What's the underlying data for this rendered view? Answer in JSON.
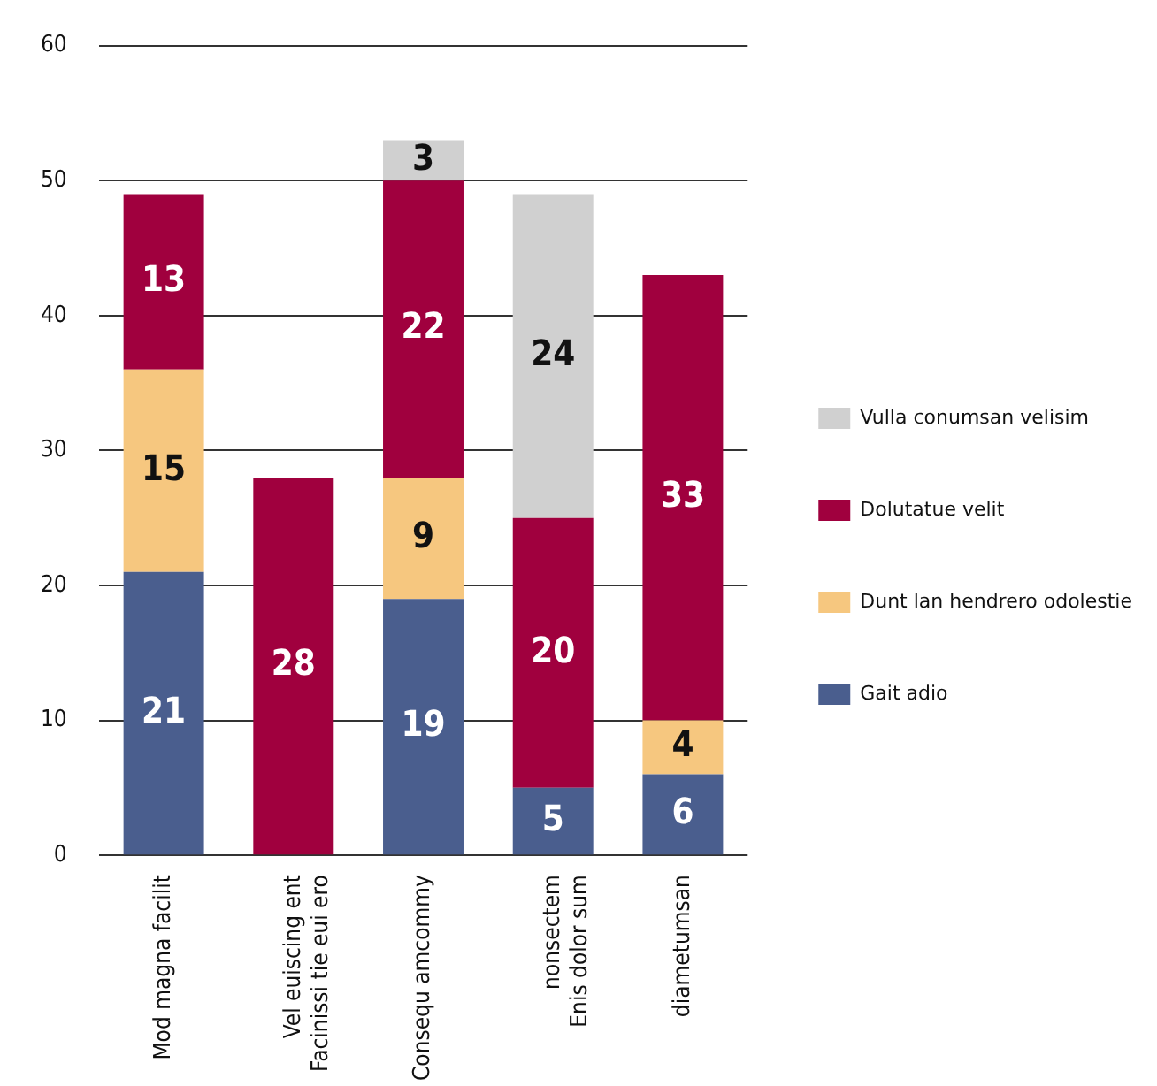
{
  "chart_data": {
    "type": "bar",
    "stacked": true,
    "categories": [
      "Mod magna facilit",
      "Vel euiscing ent\nFacinissi tie eui ero",
      "Consequ amcommy",
      "nonsectem\nEnis dolor sum",
      "diametumsan"
    ],
    "series": [
      {
        "name": "Gait adio",
        "color": "#4a5e8e",
        "values": [
          21,
          null,
          19,
          5,
          6
        ]
      },
      {
        "name": "Dunt lan hendrero odolestie",
        "color": "#f6c77f",
        "values": [
          15,
          null,
          9,
          null,
          4
        ]
      },
      {
        "name": "Dolutatue velit",
        "color": "#a0003e",
        "values": [
          13,
          28,
          22,
          20,
          33
        ]
      },
      {
        "name": "Vulla conumsan velisim",
        "color": "#d0d0d0",
        "values": [
          null,
          null,
          3,
          24,
          null
        ]
      }
    ],
    "ylim": [
      0,
      60
    ],
    "yticks": [
      0,
      10,
      20,
      30,
      40,
      50,
      60
    ],
    "grid": "y",
    "legend": "right",
    "data_labels": true
  }
}
